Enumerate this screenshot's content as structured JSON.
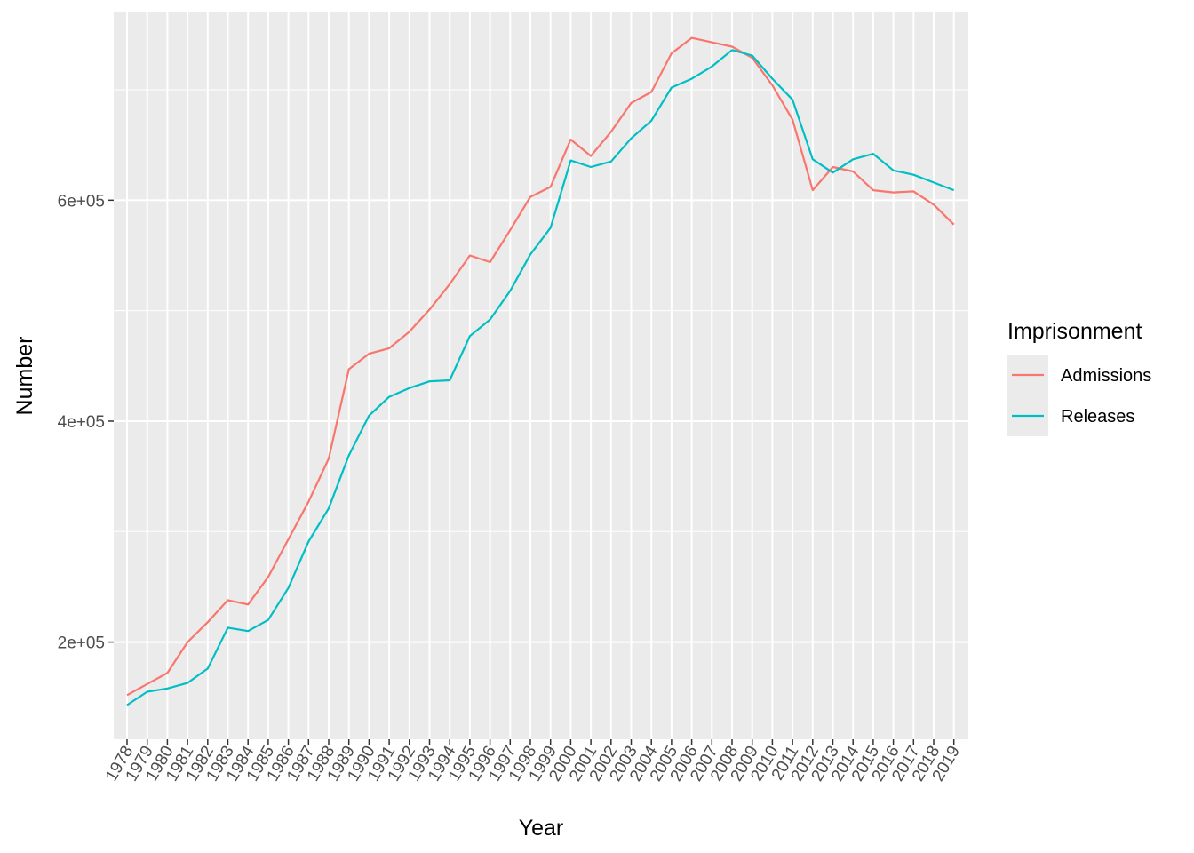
{
  "chart_data": {
    "type": "line",
    "xlabel": "Year",
    "ylabel": "Number",
    "x": [
      "1978",
      "1979",
      "1980",
      "1981",
      "1982",
      "1983",
      "1984",
      "1985",
      "1986",
      "1987",
      "1988",
      "1989",
      "1990",
      "1991",
      "1992",
      "1993",
      "1994",
      "1995",
      "1996",
      "1997",
      "1998",
      "1999",
      "2000",
      "2001",
      "2002",
      "2003",
      "2004",
      "2005",
      "2006",
      "2007",
      "2008",
      "2009",
      "2010",
      "2011",
      "2012",
      "2013",
      "2014",
      "2015",
      "2016",
      "2017",
      "2018",
      "2019"
    ],
    "y_ticks": [
      200000,
      400000,
      600000
    ],
    "y_tick_labels": [
      "2e+05",
      "4e+05",
      "6e+05"
    ],
    "ylim": [
      112000,
      770000
    ],
    "grid": true,
    "legend": {
      "title": "Imprisonment",
      "position": "right"
    },
    "series": [
      {
        "name": "Admissions",
        "color": "#F8766D",
        "values": [
          152000,
          162000,
          172000,
          200000,
          218000,
          238000,
          234000,
          259000,
          293000,
          327000,
          366000,
          447000,
          461000,
          466000,
          481000,
          501000,
          524000,
          550000,
          544000,
          573000,
          603000,
          612000,
          655000,
          640000,
          662000,
          688000,
          698000,
          733000,
          747000,
          743000,
          739000,
          729000,
          704000,
          673000,
          609000,
          630000,
          626000,
          609000,
          607000,
          608000,
          596000,
          578000
        ]
      },
      {
        "name": "Releases",
        "color": "#00BFC4",
        "values": [
          143000,
          155000,
          158000,
          163000,
          176000,
          213000,
          210000,
          220000,
          249000,
          291000,
          321000,
          369000,
          405000,
          422000,
          430000,
          436000,
          437000,
          477000,
          492000,
          518000,
          551000,
          575000,
          636000,
          630000,
          635000,
          656000,
          672000,
          702000,
          710000,
          721000,
          736000,
          731000,
          710000,
          691000,
          637000,
          625000,
          637000,
          642000,
          627000,
          623000,
          616000,
          609000
        ]
      }
    ]
  }
}
